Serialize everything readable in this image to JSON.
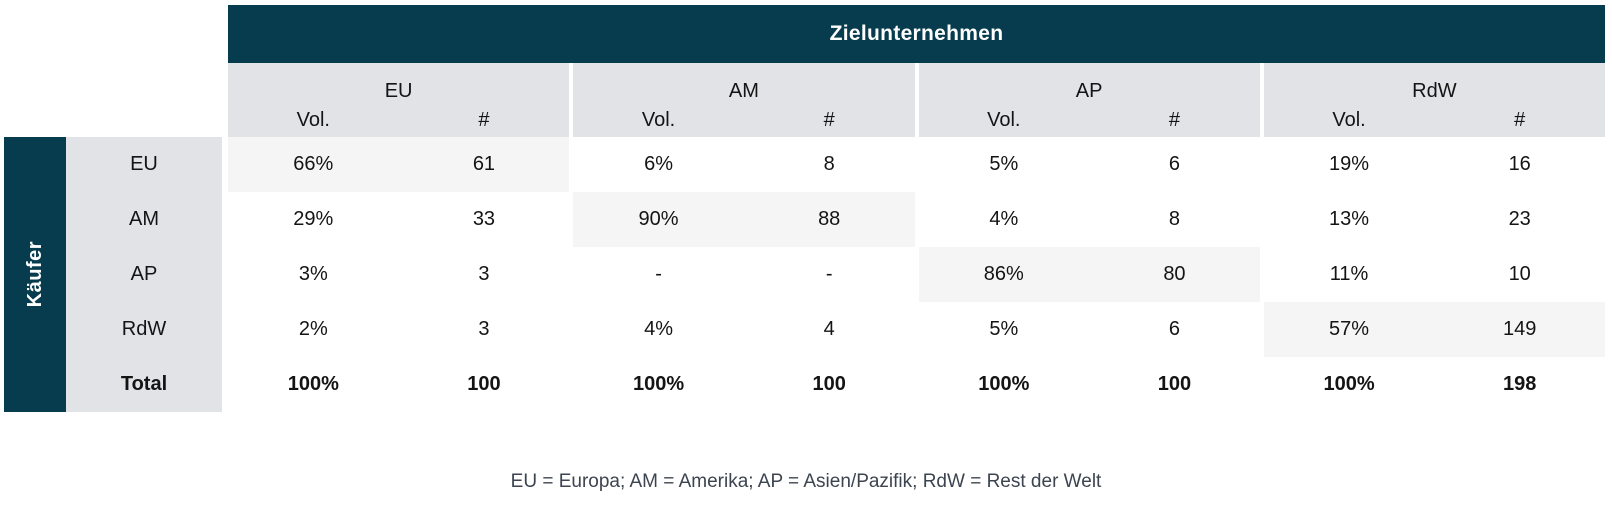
{
  "colors": {
    "teal": "#063c4e",
    "band_gray": "#e1e3e7",
    "diagonal_highlight": "#f5f5f6",
    "text": "#141414",
    "legend_text": "#3c4450"
  },
  "table": {
    "top_header": "Zielunternehmen",
    "left_header": "Käufer",
    "subcol_labels": {
      "vol": "Vol.",
      "count": "#"
    },
    "column_groups": [
      "EU",
      "AM",
      "AP",
      "RdW"
    ],
    "rows": [
      {
        "label": "EU",
        "bold": false,
        "highlight_group": 0,
        "cells": [
          [
            "66%",
            "61"
          ],
          [
            "6%",
            "8"
          ],
          [
            "5%",
            "6"
          ],
          [
            "19%",
            "16"
          ]
        ]
      },
      {
        "label": "AM",
        "bold": false,
        "highlight_group": 1,
        "cells": [
          [
            "29%",
            "33"
          ],
          [
            "90%",
            "88"
          ],
          [
            "4%",
            "8"
          ],
          [
            "13%",
            "23"
          ]
        ]
      },
      {
        "label": "AP",
        "bold": false,
        "highlight_group": 2,
        "cells": [
          [
            "3%",
            "3"
          ],
          [
            "-",
            "-"
          ],
          [
            "86%",
            "80"
          ],
          [
            "11%",
            "10"
          ]
        ]
      },
      {
        "label": "RdW",
        "bold": false,
        "highlight_group": 3,
        "cells": [
          [
            "2%",
            "3"
          ],
          [
            "4%",
            "4"
          ],
          [
            "5%",
            "6"
          ],
          [
            "57%",
            "149"
          ]
        ]
      },
      {
        "label": "Total",
        "bold": true,
        "highlight_group": -1,
        "cells": [
          [
            "100%",
            "100"
          ],
          [
            "100%",
            "100"
          ],
          [
            "100%",
            "100"
          ],
          [
            "100%",
            "198"
          ]
        ]
      }
    ],
    "legend": "EU = Europa; AM = Amerika; AP = Asien/Pazifik; RdW = Rest der Welt"
  },
  "chart_data": {
    "type": "table",
    "title": "Zielunternehmen",
    "row_axis_label": "Käufer",
    "column_groups": [
      "EU",
      "AM",
      "AP",
      "RdW"
    ],
    "subcolumns_per_group": [
      "Vol.",
      "#"
    ],
    "rows": [
      {
        "label": "EU",
        "values": [
          "66%",
          61,
          "6%",
          8,
          "5%",
          6,
          "19%",
          16
        ]
      },
      {
        "label": "AM",
        "values": [
          "29%",
          33,
          "90%",
          88,
          "4%",
          8,
          "13%",
          23
        ]
      },
      {
        "label": "AP",
        "values": [
          "3%",
          3,
          "-",
          "-",
          "86%",
          80,
          "11%",
          10
        ]
      },
      {
        "label": "RdW",
        "values": [
          "2%",
          3,
          "4%",
          4,
          "5%",
          6,
          "57%",
          149
        ]
      },
      {
        "label": "Total",
        "values": [
          "100%",
          100,
          "100%",
          100,
          "100%",
          100,
          "100%",
          198
        ]
      }
    ],
    "highlighted_cells": "diagonal (EU/EU, AM/AM, AP/AP, RdW/RdW)",
    "note": "EU = Europa; AM = Amerika; AP = Asien/Pazifik; RdW = Rest der Welt"
  }
}
